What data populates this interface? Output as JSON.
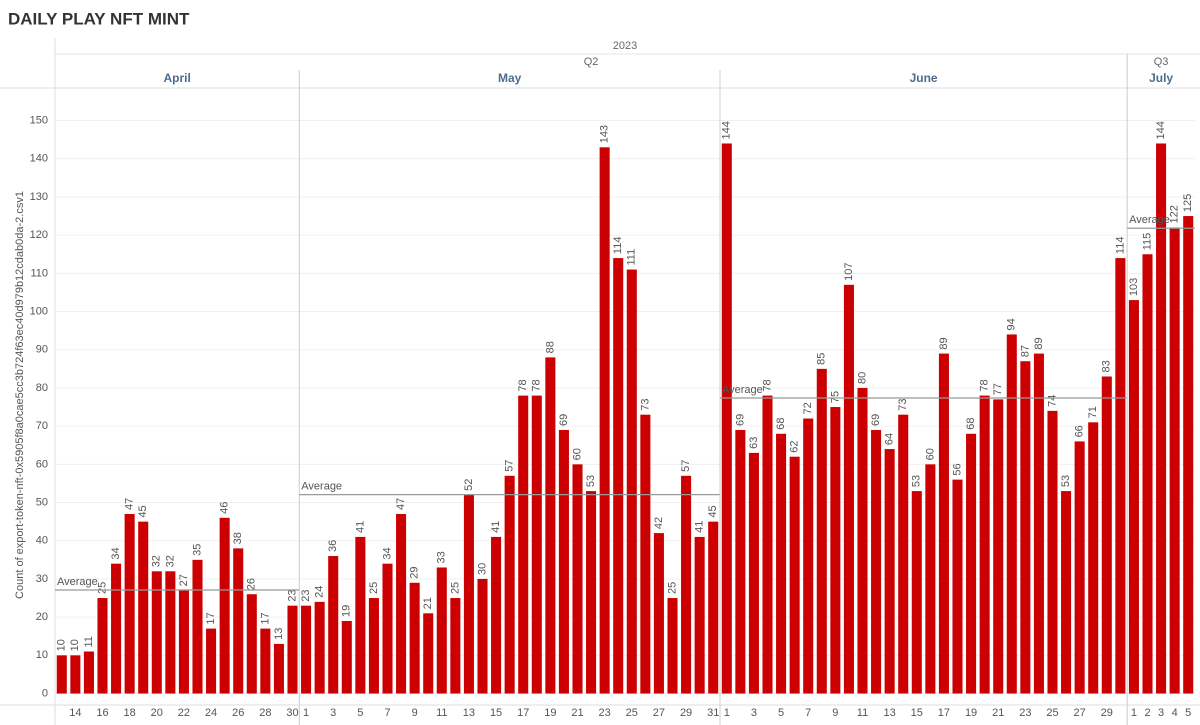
{
  "chart_data": {
    "type": "bar",
    "title": "DAILY PLAY NFT MINT",
    "year": "2023",
    "y_label": "Count of export-token-nft-0x5905f8a0cae5cc3b724f63ec40d979b12cdab0da-2.csv1",
    "average_label": "Average",
    "color": "#cc0000",
    "ylim": [
      -3,
      158
    ],
    "yticks": [
      0,
      10,
      20,
      30,
      40,
      50,
      60,
      70,
      80,
      90,
      100,
      110,
      120,
      130,
      140,
      150
    ],
    "grid": true,
    "quarters": [
      {
        "name": "Q2",
        "months": [
          {
            "name": "April",
            "categories": [
              null,
              14,
              null,
              16,
              null,
              18,
              null,
              20,
              null,
              22,
              null,
              24,
              null,
              26,
              null,
              28,
              null,
              30
            ],
            "values": [
              10,
              10,
              11,
              25,
              34,
              47,
              45,
              32,
              32,
              27,
              35,
              17,
              46,
              38,
              26,
              17,
              13,
              23
            ]
          },
          {
            "name": "May",
            "categories": [
              1,
              null,
              3,
              null,
              5,
              null,
              7,
              null,
              9,
              null,
              11,
              null,
              13,
              null,
              15,
              null,
              17,
              null,
              19,
              null,
              21,
              null,
              23,
              null,
              25,
              null,
              27,
              null,
              29,
              null,
              31
            ],
            "values": [
              23,
              24,
              36,
              19,
              41,
              25,
              34,
              47,
              29,
              21,
              33,
              25,
              52,
              30,
              41,
              57,
              78,
              78,
              88,
              69,
              60,
              53,
              143,
              114,
              111,
              73,
              42,
              25,
              57,
              41,
              45
            ]
          },
          {
            "name": "June",
            "categories": [
              1,
              null,
              3,
              null,
              5,
              null,
              7,
              null,
              9,
              null,
              11,
              null,
              13,
              null,
              15,
              null,
              17,
              null,
              19,
              null,
              21,
              null,
              23,
              null,
              25,
              null,
              27,
              null,
              29,
              null
            ],
            "values": [
              144,
              69,
              63,
              78,
              68,
              62,
              72,
              85,
              75,
              107,
              80,
              69,
              64,
              73,
              53,
              60,
              89,
              56,
              68,
              78,
              77,
              94,
              87,
              89,
              74,
              53,
              66,
              71,
              83,
              114
            ]
          }
        ]
      },
      {
        "name": "Q3",
        "months": [
          {
            "name": "July",
            "categories": [
              1,
              2,
              3,
              4,
              5
            ],
            "values": [
              103,
              115,
              144,
              122,
              125
            ]
          }
        ]
      }
    ]
  }
}
